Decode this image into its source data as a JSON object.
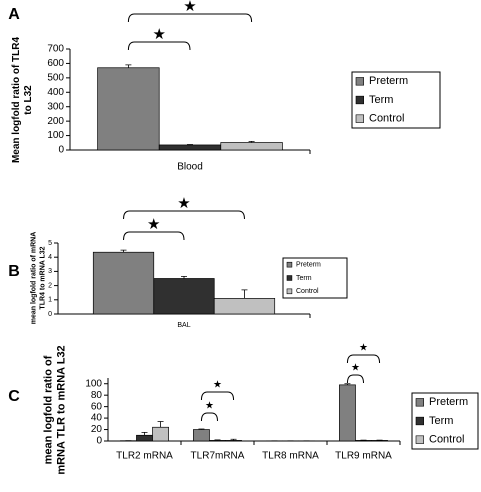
{
  "chart_data": [
    {
      "type": "bar",
      "panel": "A",
      "ylabel": [
        "Mean logfold ratio of TLR4",
        "to L32"
      ],
      "categories": [
        "Blood"
      ],
      "series": [
        {
          "name": "Preterm",
          "color": "#808080",
          "values": [
            570
          ],
          "errors": [
            20
          ]
        },
        {
          "name": "Term",
          "color": "#303030",
          "values": [
            35
          ],
          "errors": [
            3
          ]
        },
        {
          "name": "Control",
          "color": "#c0c0c0",
          "values": [
            52
          ],
          "errors": [
            8
          ]
        }
      ],
      "ylim": [
        0,
        700
      ],
      "yticks": [
        0,
        100,
        200,
        300,
        400,
        500,
        600,
        700
      ],
      "annotations": [
        "★",
        "★"
      ]
    },
    {
      "type": "bar",
      "panel": "B",
      "ylabel": [
        "mean logfold ratio of mRNA",
        "TLR4 to mRNA L32"
      ],
      "categories": [
        "BAL"
      ],
      "series": [
        {
          "name": "Preterm",
          "color": "#808080",
          "values": [
            4.35
          ],
          "errors": [
            0.15
          ]
        },
        {
          "name": "Term",
          "color": "#303030",
          "values": [
            2.5
          ],
          "errors": [
            0.15
          ]
        },
        {
          "name": "Control",
          "color": "#c0c0c0",
          "values": [
            1.1
          ],
          "errors": [
            0.6
          ]
        }
      ],
      "ylim": [
        0,
        5
      ],
      "yticks": [
        0,
        1,
        2,
        3,
        4,
        5
      ],
      "annotations": [
        "★",
        "★"
      ]
    },
    {
      "type": "bar",
      "panel": "C",
      "ylabel": [
        "mean logfold ratio of",
        "mRNA TLR to mRNA L32"
      ],
      "categories": [
        "TLR2 mRNA",
        "TLR7mRNA",
        "TLR8 mRNA",
        "TLR9 mRNA"
      ],
      "series": [
        {
          "name": "Preterm",
          "color": "#808080",
          "values": [
            0.5,
            20,
            0.3,
            98
          ],
          "errors": [
            0,
            1,
            0,
            2
          ]
        },
        {
          "name": "Term",
          "color": "#303030",
          "values": [
            10,
            1,
            0.3,
            1
          ],
          "errors": [
            5,
            1,
            0,
            0.5
          ]
        },
        {
          "name": "Control",
          "color": "#c0c0c0",
          "values": [
            24,
            1,
            0.3,
            1
          ],
          "errors": [
            10,
            2,
            0,
            0.5
          ]
        }
      ],
      "ylim": [
        0,
        110
      ],
      "yticks": [
        0,
        20,
        40,
        60,
        80,
        100
      ],
      "annotations": [
        "★",
        "★",
        "★",
        "★"
      ]
    }
  ]
}
